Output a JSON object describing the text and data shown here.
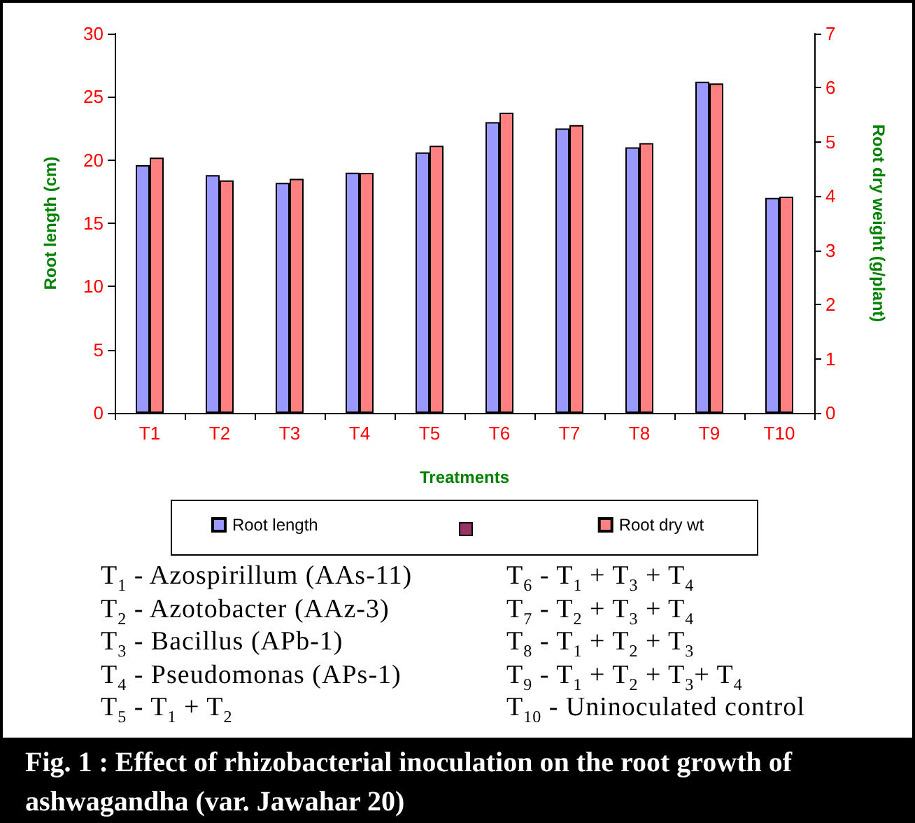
{
  "chart_data": {
    "type": "bar",
    "title": "Fig. 1 :  Effect of rhizobacterial inoculation on the root growth of ashwagandha (var. Jawahar 20)",
    "xlabel": "Treatments",
    "ylabel": "Root length (cm)",
    "y2label": "Root dry weight (g/plant)",
    "categories": [
      "T1",
      "T2",
      "T3",
      "T4",
      "T5",
      "T6",
      "T7",
      "T8",
      "T9",
      "T10"
    ],
    "series": [
      {
        "name": "Root length",
        "color": "#9999ff",
        "values": [
          19.6,
          18.8,
          18.2,
          19.0,
          20.6,
          23.0,
          22.5,
          21.0,
          26.2,
          17.0
        ]
      },
      {
        "name": "Root dry wt",
        "color": "#ff8080",
        "axis": "y2",
        "values": [
          4.71,
          4.29,
          4.32,
          4.43,
          4.93,
          5.54,
          5.31,
          4.98,
          6.08,
          3.99
        ]
      }
    ],
    "ylim": [
      0,
      30
    ],
    "yticks": [
      0,
      5,
      10,
      15,
      20,
      25,
      30
    ],
    "y2lim": [
      0,
      7
    ],
    "y2ticks": [
      0,
      1,
      2,
      3,
      4,
      5,
      6,
      7
    ],
    "legend": "bottom",
    "grid": false,
    "annotations": [
      "T$_{1}$ - Azospirillum (AAs-11)",
      "T$_{2}$ - Azotobacter (AAz-3)",
      "T$_{3}$ - Bacillus (APb-1)",
      "T$_{4}$ - Pseudomonas (APs-1)",
      "T$_{5}$ - T$_{1}$ + T$_{2}$",
      "T$_{6}$ - T$_{1}$ + T$_{3}$ + T$_{4}$",
      "T$_{7}$ - T$_{2}$ + T$_{3}$ + T$_{4}$",
      "T$_{8}$ - T$_{1}$ + T$_{2}$ + T$_{3}$",
      "T$_{9}$ - T$_{1}$ + T$_{2}$ + T$_{3}$+ T$_{4}$",
      "T$_{10}$ - Uninoculated control"
    ]
  }
}
